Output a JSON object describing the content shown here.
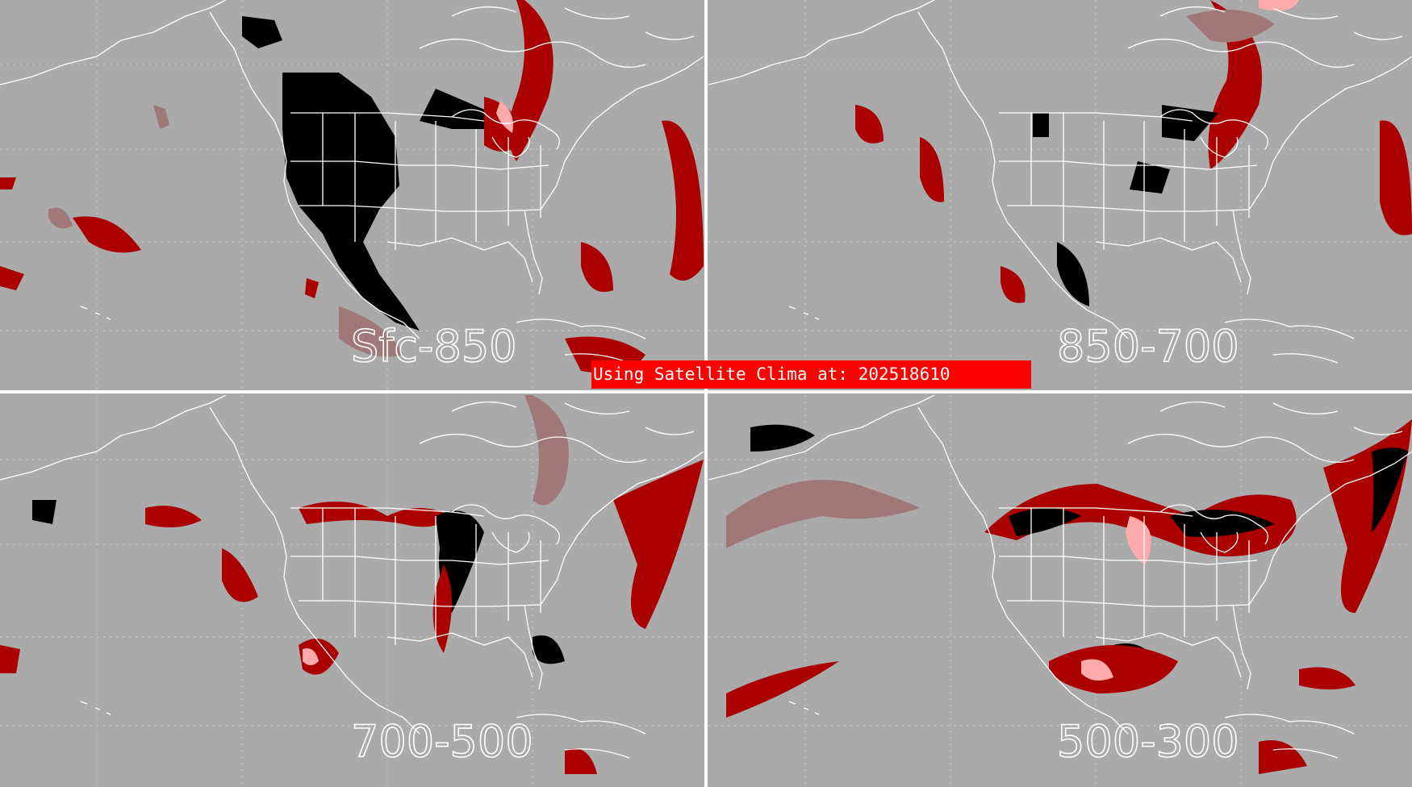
{
  "banner": {
    "text": "Using Satellite Clima at: 202518610"
  },
  "panels": [
    {
      "label": "Sfc-850"
    },
    {
      "label": "850-700"
    },
    {
      "label": "700-500"
    },
    {
      "label": "500-300"
    }
  ],
  "colors": {
    "background": "#aaaaaa",
    "divider": "#ffffff",
    "banner": "#ff0000",
    "black_class": "#000000",
    "dark_red_class": "#aa0000",
    "mauve_class": "#a07878",
    "pink_class": "#ffaaaa"
  }
}
